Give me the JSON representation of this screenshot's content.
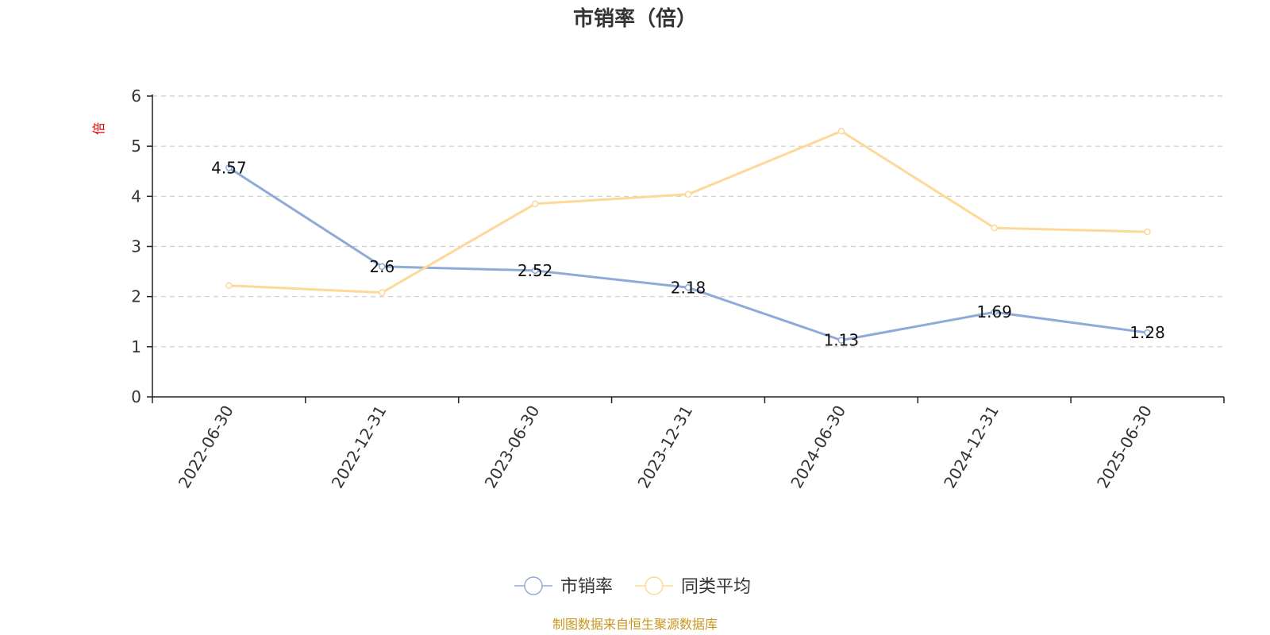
{
  "chart_data": {
    "type": "line",
    "title": "市销率（倍）",
    "ylabel": "倍",
    "xlabel": "",
    "categories": [
      "2022-06-30",
      "2022-12-31",
      "2023-06-30",
      "2023-12-31",
      "2024-06-30",
      "2024-12-31",
      "2025-06-30"
    ],
    "ylim": [
      0,
      6
    ],
    "yticks": [
      0,
      1,
      2,
      3,
      4,
      5,
      6
    ],
    "grid": true,
    "legend_position": "bottom-center",
    "series": [
      {
        "name": "市销率",
        "color": "#8eabd8",
        "values": [
          4.57,
          2.6,
          2.52,
          2.18,
          1.13,
          1.69,
          1.28
        ],
        "labels": [
          "4.57",
          "2.6",
          "2.52",
          "2.18",
          "1.13",
          "1.69",
          "1.28"
        ]
      },
      {
        "name": "同类平均",
        "color": "#fdd898",
        "values": [
          2.22,
          2.08,
          3.85,
          4.04,
          5.3,
          3.37,
          3.29
        ]
      }
    ]
  },
  "source_note": "制图数据来自恒生聚源数据库"
}
